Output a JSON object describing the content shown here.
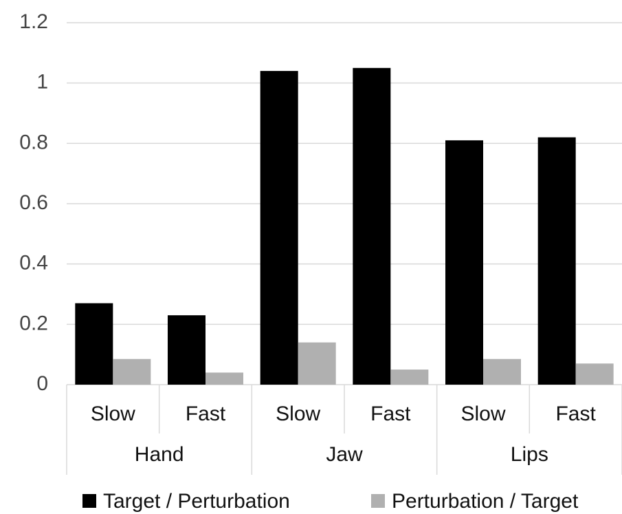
{
  "chart_data": {
    "type": "bar",
    "categories": [
      "Slow",
      "Fast",
      "Slow",
      "Fast",
      "Slow",
      "Fast"
    ],
    "groups": [
      "Hand",
      "Jaw",
      "Lips"
    ],
    "series": [
      {
        "name": "Target / Perturbation",
        "color": "#000000",
        "values": [
          0.27,
          0.23,
          1.04,
          1.05,
          0.81,
          0.82
        ]
      },
      {
        "name": "Perturbation / Target",
        "color": "#b0b0b0",
        "values": [
          0.085,
          0.04,
          0.14,
          0.05,
          0.085,
          0.07
        ]
      }
    ],
    "ylim": [
      0,
      1.2
    ],
    "yticks": [
      0,
      0.2,
      0.4,
      0.6,
      0.8,
      1,
      1.2
    ],
    "grid": true,
    "legend": "bottom"
  }
}
